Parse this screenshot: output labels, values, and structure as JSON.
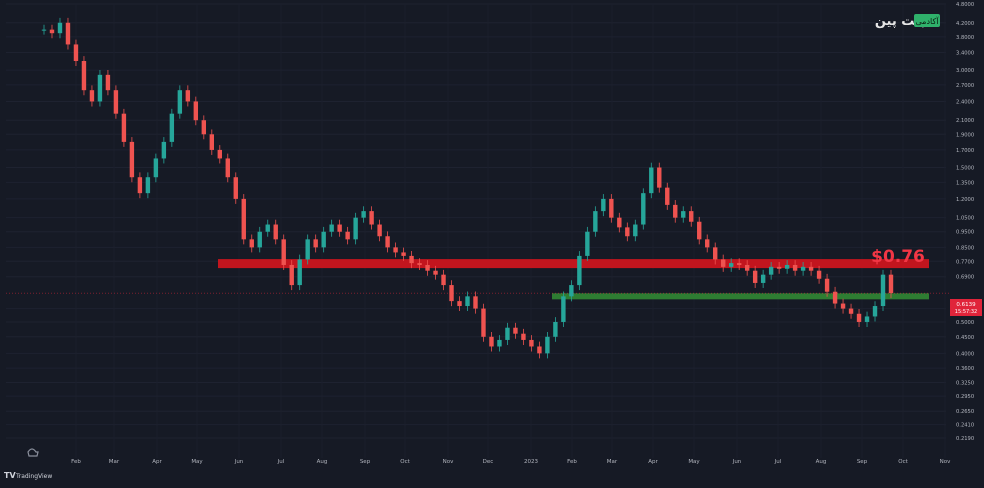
{
  "brand": {
    "logo_text": "بیت پین",
    "badge_text": "آکادمی"
  },
  "footer": {
    "tradingview_label": "TradingView"
  },
  "colors": {
    "background": "#161a25",
    "up": "#26a69a",
    "down": "#ef5350",
    "resistance": "#c2151e",
    "support": "#2e7d32",
    "price_label": "#f23645"
  },
  "chart_data": {
    "type": "line",
    "instrument_note": "candlestick price chart",
    "y_scale": "log",
    "ylim": [
      0.19,
      4.8
    ],
    "y_ticks": [
      "4.8000",
      "4.2000",
      "3.8000",
      "3.4000",
      "3.0000",
      "2.7000",
      "2.4000",
      "2.1000",
      "1.9000",
      "1.7000",
      "1.5000",
      "1.3500",
      "1.2000",
      "1.0500",
      "0.9500",
      "0.8500",
      "0.7700",
      "0.6900",
      "0.5500",
      "0.5000",
      "0.4500",
      "0.4000",
      "0.3600",
      "0.3250",
      "0.2950",
      "0.2650",
      "0.2410",
      "0.2190"
    ],
    "x_ticks": [
      "Feb",
      "Mar",
      "Apr",
      "May",
      "Jun",
      "Jul",
      "Aug",
      "Sep",
      "Oct",
      "Nov",
      "Dec",
      "2023",
      "Feb",
      "Mar",
      "Apr",
      "May",
      "Jun",
      "Jul",
      "Aug",
      "Sep",
      "Oct",
      "Nov"
    ],
    "series": [
      {
        "values_note": "approximate closing prices, evenly spaced from early Jan 2022 to late Sep 2023",
        "values": [
          4.0,
          3.9,
          4.2,
          3.6,
          3.2,
          2.6,
          2.4,
          2.9,
          2.6,
          2.2,
          1.8,
          1.4,
          1.25,
          1.4,
          1.6,
          1.8,
          2.2,
          2.6,
          2.4,
          2.1,
          1.9,
          1.7,
          1.6,
          1.4,
          1.2,
          0.9,
          0.85,
          0.95,
          1.0,
          0.9,
          0.75,
          0.65,
          0.78,
          0.9,
          0.85,
          0.95,
          1.0,
          0.95,
          0.9,
          1.05,
          1.1,
          1.0,
          0.92,
          0.85,
          0.82,
          0.8,
          0.76,
          0.75,
          0.72,
          0.7,
          0.65,
          0.58,
          0.56,
          0.6,
          0.55,
          0.45,
          0.42,
          0.44,
          0.48,
          0.46,
          0.44,
          0.42,
          0.4,
          0.45,
          0.5,
          0.6,
          0.65,
          0.8,
          0.95,
          1.1,
          1.2,
          1.05,
          0.98,
          0.92,
          1.0,
          1.25,
          1.5,
          1.3,
          1.15,
          1.05,
          1.1,
          1.02,
          0.9,
          0.85,
          0.78,
          0.74,
          0.76,
          0.75,
          0.72,
          0.66,
          0.7,
          0.74,
          0.73,
          0.75,
          0.72,
          0.74,
          0.72,
          0.68,
          0.62,
          0.57,
          0.55,
          0.53,
          0.5,
          0.52,
          0.56,
          0.7,
          0.6139
        ]
      }
    ],
    "levels": [
      {
        "name": "resistance",
        "value": 0.76,
        "label": "$0.76"
      },
      {
        "name": "support",
        "value": 0.6
      }
    ],
    "last_price": {
      "value_label": "0.6139",
      "countdown": "15:57:32"
    }
  }
}
